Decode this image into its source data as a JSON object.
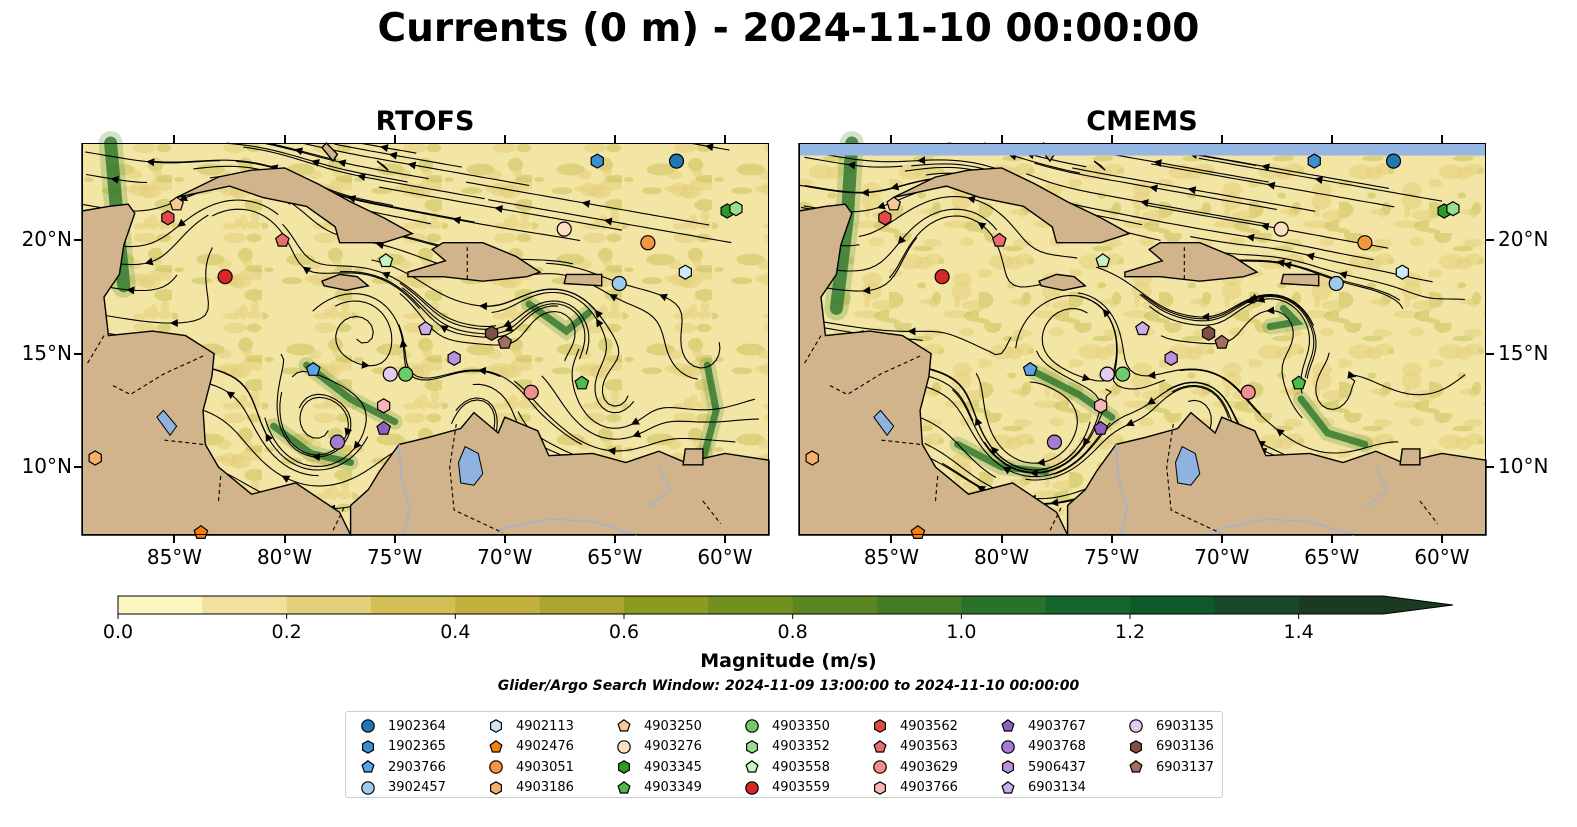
{
  "title": "Currents (0 m) - 2024-11-10 00:00:00",
  "panels": [
    {
      "title": "RTOFS"
    },
    {
      "title": "CMEMS"
    }
  ],
  "axes": {
    "lon_ticks": [
      "85°W",
      "80°W",
      "75°W",
      "70°W",
      "65°W",
      "60°W"
    ],
    "lon_values": [
      -85,
      -80,
      -75,
      -70,
      -65,
      -60
    ],
    "lat_ticks": [
      "10°N",
      "15°N",
      "20°N"
    ],
    "lat_values": [
      10,
      15,
      20
    ],
    "lon_range": [
      -89.2,
      -58.0
    ],
    "lat_range": [
      7.0,
      24.3
    ]
  },
  "colors": {
    "land": "#d1b48c",
    "lake": "#8fb2e0",
    "sea_low": "#f3e6a5",
    "sea_mid": "#c8c05a",
    "sea_high": "#1f6b2b",
    "cmems_nodata": "#96b6e4"
  },
  "colorbar": {
    "label": "Magnitude (m/s)",
    "ticks": [
      "0.0",
      "0.2",
      "0.4",
      "0.6",
      "0.8",
      "1.0",
      "1.2",
      "1.4"
    ],
    "tick_values": [
      0.0,
      0.2,
      0.4,
      0.6,
      0.8,
      1.0,
      1.2,
      1.4
    ],
    "range": [
      0.0,
      1.5
    ],
    "extend": "max",
    "colors": [
      "#fdf6c3",
      "#f0e29e",
      "#e3d07c",
      "#d4bf55",
      "#c3b13e",
      "#a9a52e",
      "#8c9a22",
      "#72901f",
      "#5b8722",
      "#427d25",
      "#2a7229",
      "#14662d",
      "#0f5a2b",
      "#17482a",
      "#1a3a22"
    ]
  },
  "search_window": "Glider/Argo Search Window: 2024-11-09 13:00:00 to 2024-11-10 00:00:00",
  "legend": [
    {
      "id": "1902364",
      "marker": "circle",
      "color": "#1f77b4"
    },
    {
      "id": "1902365",
      "marker": "hexagon",
      "color": "#3a8fd0"
    },
    {
      "id": "2903766",
      "marker": "pentagon",
      "color": "#5aa3e6"
    },
    {
      "id": "3902457",
      "marker": "circle",
      "color": "#9fcaf0"
    },
    {
      "id": "4902113",
      "marker": "hexagon",
      "color": "#cfe7fb"
    },
    {
      "id": "4902476",
      "marker": "pentagon",
      "color": "#f57f11"
    },
    {
      "id": "4903051",
      "marker": "circle",
      "color": "#f59540"
    },
    {
      "id": "4903186",
      "marker": "hexagon",
      "color": "#f7b06a"
    },
    {
      "id": "4903250",
      "marker": "pentagon",
      "color": "#f8c998"
    },
    {
      "id": "4903276",
      "marker": "circle",
      "color": "#fde0c4"
    },
    {
      "id": "4903345",
      "marker": "hexagon",
      "color": "#2a9a2a"
    },
    {
      "id": "4903349",
      "marker": "pentagon",
      "color": "#4cbb4c"
    },
    {
      "id": "4903350",
      "marker": "circle",
      "color": "#6fca6a"
    },
    {
      "id": "4903352",
      "marker": "hexagon",
      "color": "#9adf90"
    },
    {
      "id": "4903558",
      "marker": "pentagon",
      "color": "#c9f3c0"
    },
    {
      "id": "4903559",
      "marker": "circle",
      "color": "#d62728"
    },
    {
      "id": "4903562",
      "marker": "hexagon",
      "color": "#e04a4c"
    },
    {
      "id": "4903563",
      "marker": "pentagon",
      "color": "#ea6c6e"
    },
    {
      "id": "4903629",
      "marker": "circle",
      "color": "#f08f90"
    },
    {
      "id": "4903766",
      "marker": "hexagon",
      "color": "#f8b6b8"
    },
    {
      "id": "4903767",
      "marker": "pentagon",
      "color": "#9060c0"
    },
    {
      "id": "4903768",
      "marker": "circle",
      "color": "#a57bd0"
    },
    {
      "id": "5906437",
      "marker": "hexagon",
      "color": "#b893dc"
    },
    {
      "id": "6903134",
      "marker": "pentagon",
      "color": "#c9aee8"
    },
    {
      "id": "6903135",
      "marker": "circle",
      "color": "#e2cbf1"
    },
    {
      "id": "6903136",
      "marker": "hexagon",
      "color": "#7f4f45"
    },
    {
      "id": "6903137",
      "marker": "pentagon",
      "color": "#a36d60"
    }
  ],
  "floats": [
    {
      "id": "1902364",
      "lon": -62.2,
      "lat": 23.5
    },
    {
      "id": "1902365",
      "lon": -65.8,
      "lat": 23.5
    },
    {
      "id": "2903766",
      "lon": -78.7,
      "lat": 14.3
    },
    {
      "id": "3902457",
      "lon": -64.8,
      "lat": 18.1
    },
    {
      "id": "4902113",
      "lon": -61.8,
      "lat": 18.6
    },
    {
      "id": "4902476",
      "lon": -83.8,
      "lat": 7.1
    },
    {
      "id": "4903051",
      "lon": -63.5,
      "lat": 19.9
    },
    {
      "id": "4903186",
      "lon": -88.6,
      "lat": 10.4
    },
    {
      "id": "4903250",
      "lon": -84.9,
      "lat": 21.6
    },
    {
      "id": "4903276",
      "lon": -67.3,
      "lat": 20.5
    },
    {
      "id": "4903345",
      "lon": -59.9,
      "lat": 21.3
    },
    {
      "id": "4903349",
      "lon": -66.5,
      "lat": 13.7
    },
    {
      "id": "4903350",
      "lon": -74.5,
      "lat": 14.1
    },
    {
      "id": "4903352",
      "lon": -59.5,
      "lat": 21.4
    },
    {
      "id": "4903558",
      "lon": -75.4,
      "lat": 19.1
    },
    {
      "id": "4903559",
      "lon": -82.7,
      "lat": 18.4
    },
    {
      "id": "4903562",
      "lon": -85.3,
      "lat": 21.0
    },
    {
      "id": "4903563",
      "lon": -80.1,
      "lat": 20.0
    },
    {
      "id": "4903629",
      "lon": -68.8,
      "lat": 13.3
    },
    {
      "id": "4903766",
      "lon": -75.5,
      "lat": 12.7
    },
    {
      "id": "4903767",
      "lon": -75.5,
      "lat": 11.7
    },
    {
      "id": "4903768",
      "lon": -77.6,
      "lat": 11.1
    },
    {
      "id": "5906437",
      "lon": -72.3,
      "lat": 14.8
    },
    {
      "id": "6903134",
      "lon": -73.6,
      "lat": 16.1
    },
    {
      "id": "6903135",
      "lon": -75.2,
      "lat": 14.1
    },
    {
      "id": "6903136",
      "lon": -70.6,
      "lat": 15.9
    },
    {
      "id": "6903137",
      "lon": -70.0,
      "lat": 15.5
    }
  ]
}
